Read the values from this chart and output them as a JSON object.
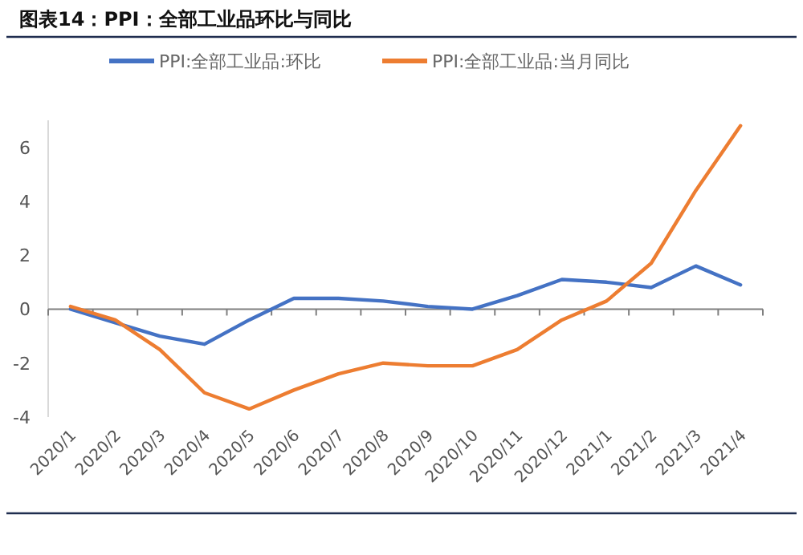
{
  "chart_data": {
    "type": "line",
    "title": "图表14：PPI：全部工业品环比与同比",
    "categories": [
      "2020/1",
      "2020/2",
      "2020/3",
      "2020/4",
      "2020/5",
      "2020/6",
      "2020/7",
      "2020/8",
      "2020/9",
      "2020/10",
      "2020/11",
      "2020/12",
      "2021/1",
      "2021/2",
      "2021/3",
      "2021/4"
    ],
    "series": [
      {
        "name": "PPI:全部工业品:环比",
        "color": "#4472c4",
        "values": [
          0.0,
          -0.5,
          -1.0,
          -1.3,
          -0.4,
          0.4,
          0.4,
          0.3,
          0.1,
          0.0,
          0.5,
          1.1,
          1.0,
          0.8,
          1.6,
          0.9
        ]
      },
      {
        "name": "PPI:全部工业品:当月同比",
        "color": "#ed7d31",
        "values": [
          0.1,
          -0.4,
          -1.5,
          -3.1,
          -3.7,
          -3.0,
          -2.4,
          -2.0,
          -2.1,
          -2.1,
          -1.5,
          -0.4,
          0.3,
          1.7,
          4.4,
          6.8
        ]
      }
    ],
    "ylim": [
      -4,
      7
    ],
    "yticks": [
      -4,
      -2,
      0,
      2,
      4,
      6
    ],
    "legend": "top",
    "marker": "none",
    "line_style": "solid"
  }
}
